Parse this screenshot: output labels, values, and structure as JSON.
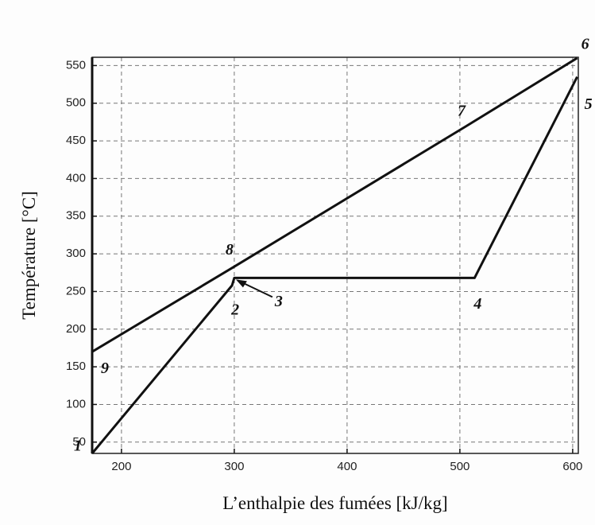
{
  "chart_data": {
    "type": "line",
    "xlabel": "L’enthalpie des fumées [kJ/kg]",
    "ylabel": "Température [°C]",
    "xlim": [
      174,
      605
    ],
    "ylim": [
      35,
      561
    ],
    "xticks": [
      200,
      300,
      400,
      500,
      600
    ],
    "yticks": [
      50,
      100,
      150,
      200,
      250,
      300,
      350,
      400,
      450,
      500,
      550
    ],
    "grid": true,
    "series": [
      {
        "color": "#111111",
        "x": [
          174,
          300,
          505,
          604
        ],
        "values": [
          170,
          283,
          469,
          560
        ],
        "point_labels": [
          "9",
          "8",
          "7",
          "6"
        ]
      },
      {
        "color": "#111111",
        "x": [
          174,
          298,
          300,
          513,
          604
        ],
        "values": [
          35,
          258,
          268,
          268,
          535
        ],
        "point_labels": [
          "1",
          "2",
          "3",
          "4",
          "5"
        ]
      }
    ]
  }
}
